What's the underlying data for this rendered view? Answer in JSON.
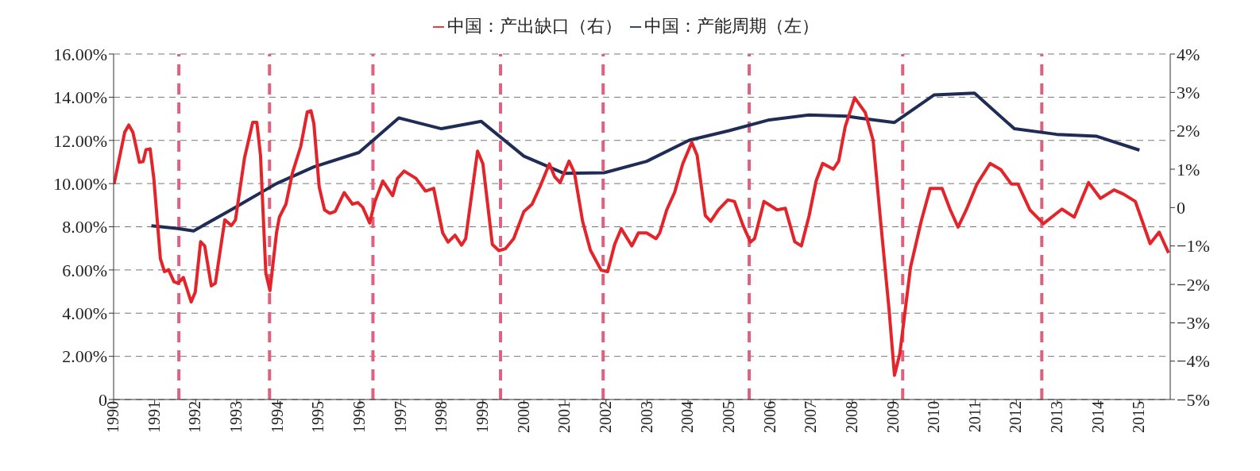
{
  "chart_data": {
    "type": "line",
    "legend": "top",
    "grid": "y",
    "line_style": "solid",
    "marker": "none",
    "xlim": [
      1990,
      2015.75
    ],
    "xticks": [
      1990,
      1991,
      1992,
      1993,
      1994,
      1995,
      1996,
      1997,
      1998,
      1999,
      2000,
      2001,
      2002,
      2003,
      2004,
      2005,
      2006,
      2007,
      2008,
      2009,
      2010,
      2011,
      2012,
      2013,
      2014,
      2015
    ],
    "ylim": [
      0,
      16
    ],
    "yticks": [
      {
        "value": 0,
        "label": "0"
      },
      {
        "value": 2,
        "label": "2.00%"
      },
      {
        "value": 4,
        "label": "4.00%"
      },
      {
        "value": 6,
        "label": "6.00%"
      },
      {
        "value": 8,
        "label": "8.00%"
      },
      {
        "value": 10,
        "label": "10.00%"
      },
      {
        "value": 12,
        "label": "12.00%"
      },
      {
        "value": 14,
        "label": "14.00%"
      },
      {
        "value": 16,
        "label": "16.00%"
      }
    ],
    "y2lim": [
      -5,
      4
    ],
    "y2ticks": [
      {
        "value": -5,
        "label": "−5%"
      },
      {
        "value": -4,
        "label": "−4%"
      },
      {
        "value": -3,
        "label": "−3%"
      },
      {
        "value": -2,
        "label": "−2%"
      },
      {
        "value": -1,
        "label": "−1%"
      },
      {
        "value": 0,
        "label": "0"
      },
      {
        "value": 1,
        "label": "1%"
      },
      {
        "value": 2,
        "label": "2%"
      },
      {
        "value": 3,
        "label": "3%"
      },
      {
        "value": 4,
        "label": "4%"
      }
    ],
    "series": [
      {
        "name": "中国：产能周期（左）",
        "color": "#1f2d56",
        "x": [
          1990.92,
          1991.57,
          1991.95,
          1992.92,
          1993.97,
          1994.88,
          1995.98,
          1996.95,
          1997.99,
          1998.96,
          2000.0,
          2000.98,
          2001.95,
          2002.99,
          2004.03,
          2005.0,
          2005.98,
          2006.95,
          2007.86,
          2008.19,
          2009.03,
          2010.0,
          2010.98,
          2011.95,
          2012.98,
          2013.96,
          2015.0
        ],
        "values": [
          8.05,
          7.92,
          7.81,
          8.85,
          10.0,
          10.77,
          11.44,
          13.04,
          12.54,
          12.88,
          11.27,
          10.47,
          10.5,
          11.03,
          12.01,
          12.45,
          12.95,
          13.18,
          13.12,
          13.03,
          12.83,
          14.11,
          14.19,
          12.54,
          12.28,
          12.19,
          11.55
        ]
      },
      {
        "name": "中国：产出缺口（右）",
        "color": "#e3242b",
        "axis": "y2",
        "x": [
          1990.01,
          1990.27,
          1990.37,
          1990.47,
          1990.63,
          1990.72,
          1990.79,
          1990.89,
          1990.98,
          1991.14,
          1991.24,
          1991.34,
          1991.47,
          1991.57,
          1991.7,
          1991.89,
          1991.99,
          1992.12,
          1992.22,
          1992.38,
          1992.48,
          1992.71,
          1992.87,
          1992.97,
          1993.19,
          1993.39,
          1993.49,
          1993.58,
          1993.71,
          1993.81,
          1993.97,
          1994.04,
          1994.2,
          1994.36,
          1994.56,
          1994.72,
          1994.81,
          1994.88,
          1995.01,
          1995.14,
          1995.27,
          1995.4,
          1995.62,
          1995.82,
          1995.95,
          1996.07,
          1996.24,
          1996.37,
          1996.56,
          1996.8,
          1996.92,
          1997.08,
          1997.37,
          1997.6,
          1997.8,
          1998.02,
          1998.15,
          1998.32,
          1998.48,
          1998.58,
          1998.87,
          1999.0,
          1999.23,
          1999.39,
          1999.55,
          1999.75,
          2000.0,
          2000.2,
          2000.39,
          2000.62,
          2000.75,
          2000.88,
          2001.1,
          2001.23,
          2001.43,
          2001.62,
          2001.88,
          2002.04,
          2002.21,
          2002.37,
          2002.63,
          2002.79,
          2002.99,
          2003.22,
          2003.31,
          2003.48,
          2003.67,
          2003.87,
          2004.09,
          2004.22,
          2004.42,
          2004.55,
          2004.74,
          2004.97,
          2005.13,
          2005.33,
          2005.52,
          2005.62,
          2005.85,
          2006.17,
          2006.37,
          2006.6,
          2006.76,
          2006.95,
          2007.12,
          2007.28,
          2007.54,
          2007.67,
          2007.83,
          2008.06,
          2008.32,
          2008.51,
          2008.7,
          2008.9,
          2009.03,
          2009.16,
          2009.42,
          2009.68,
          2009.9,
          2010.19,
          2010.39,
          2010.58,
          2010.78,
          2011.04,
          2011.36,
          2011.62,
          2011.88,
          2012.04,
          2012.33,
          2012.66,
          2013.11,
          2013.41,
          2013.76,
          2014.05,
          2014.38,
          2014.61,
          2014.9,
          2015.26,
          2015.48,
          2015.71
        ],
        "values": [
          0.61,
          1.96,
          2.15,
          1.96,
          1.18,
          1.2,
          1.51,
          1.53,
          0.76,
          -1.33,
          -1.67,
          -1.62,
          -1.93,
          -1.97,
          -1.82,
          -2.46,
          -2.2,
          -0.89,
          -1.0,
          -2.04,
          -1.97,
          -0.32,
          -0.47,
          -0.32,
          1.29,
          2.22,
          2.22,
          1.36,
          -1.71,
          -2.16,
          -0.66,
          -0.25,
          0.09,
          0.91,
          1.59,
          2.49,
          2.52,
          2.19,
          0.54,
          -0.06,
          -0.15,
          -0.1,
          0.39,
          0.09,
          0.13,
          0.01,
          -0.4,
          0.16,
          0.69,
          0.31,
          0.76,
          0.95,
          0.76,
          0.43,
          0.5,
          -0.66,
          -0.9,
          -0.72,
          -0.98,
          -0.81,
          1.47,
          1.14,
          -0.96,
          -1.12,
          -1.07,
          -0.81,
          -0.1,
          0.09,
          0.54,
          1.14,
          0.8,
          0.65,
          1.21,
          0.91,
          -0.36,
          -1.11,
          -1.63,
          -1.67,
          -0.96,
          -0.55,
          -1.0,
          -0.66,
          -0.66,
          -0.81,
          -0.66,
          -0.06,
          0.39,
          1.14,
          1.7,
          1.36,
          -0.21,
          -0.36,
          -0.06,
          0.2,
          0.16,
          -0.44,
          -0.9,
          -0.81,
          0.16,
          -0.06,
          -0.02,
          -0.89,
          -1.0,
          -0.21,
          0.69,
          1.15,
          1.0,
          1.21,
          2.11,
          2.86,
          2.47,
          1.75,
          -0.44,
          -2.68,
          -4.37,
          -3.81,
          -1.56,
          -0.36,
          0.5,
          0.5,
          -0.06,
          -0.51,
          -0.06,
          0.61,
          1.15,
          0.99,
          0.61,
          0.61,
          -0.06,
          -0.42,
          -0.04,
          -0.25,
          0.65,
          0.24,
          0.46,
          0.35,
          0.16,
          -0.94,
          -0.64,
          -1.18
        ]
      }
    ],
    "ref_lines": [
      {
        "axis": "x",
        "value": 1991.59,
        "color": "#e0607e",
        "line_style": "dashed"
      },
      {
        "axis": "x",
        "value": 1993.8,
        "color": "#e0607e",
        "line_style": "dashed"
      },
      {
        "axis": "x",
        "value": 1996.32,
        "color": "#e0607e",
        "line_style": "dashed"
      },
      {
        "axis": "x",
        "value": 1999.43,
        "color": "#e0607e",
        "line_style": "dashed"
      },
      {
        "axis": "x",
        "value": 2001.93,
        "color": "#e0607e",
        "line_style": "dashed"
      },
      {
        "axis": "x",
        "value": 2005.49,
        "color": "#e0607e",
        "line_style": "dashed"
      },
      {
        "axis": "x",
        "value": 2009.23,
        "color": "#e0607e",
        "line_style": "dashed"
      },
      {
        "axis": "x",
        "value": 2012.62,
        "color": "#e0607e",
        "line_style": "dashed"
      }
    ]
  }
}
